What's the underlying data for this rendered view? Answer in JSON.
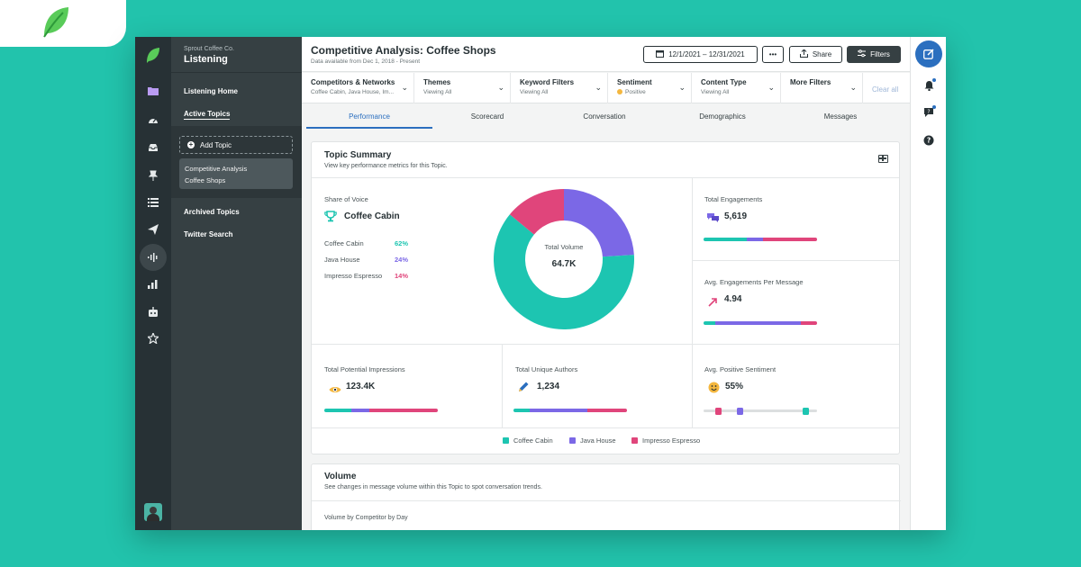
{
  "sidebar": {
    "org_name": "Sprout Coffee Co.",
    "section": "Listening",
    "nav": {
      "listening_home": "Listening Home",
      "active_topics": "Active Topics",
      "add_topic": "Add Topic",
      "topic_line1": "Competitive Analysis",
      "topic_line2": "Coffee Shops",
      "archived_topics": "Archived Topics",
      "twitter_search": "Twitter Search"
    }
  },
  "header": {
    "title": "Competitive Analysis: Coffee Shops",
    "subtitle": "Data available from Dec 1, 2018 - Present",
    "date_range": "12/1/2021 – 12/31/2021",
    "more_label": "•••",
    "share_label": "Share",
    "filters_label": "Filters"
  },
  "filters": [
    {
      "label": "Competitors & Networks",
      "value": "Coffee Cabin, Java House, Im..."
    },
    {
      "label": "Themes",
      "value": "Viewing All"
    },
    {
      "label": "Keyword Filters",
      "value": "Viewing All"
    },
    {
      "label": "Sentiment",
      "value": "Positive"
    },
    {
      "label": "Content Type",
      "value": "Viewing All"
    },
    {
      "label": "More Filters",
      "value": ""
    }
  ],
  "clear_all": "Clear all",
  "tabs": [
    "Performance",
    "Scorecard",
    "Conversation",
    "Demographics",
    "Messages"
  ],
  "topic_summary": {
    "title": "Topic Summary",
    "subtitle": "View key performance metrics for this Topic.",
    "share_of_voice": {
      "label": "Share of Voice",
      "leader": "Coffee Cabin",
      "rows": [
        {
          "name": "Coffee Cabin",
          "value": "62%"
        },
        {
          "name": "Java House",
          "value": "24%"
        },
        {
          "name": "Impresso Espresso",
          "value": "14%"
        }
      ]
    },
    "donut": {
      "center_label": "Total Volume",
      "center_value": "64.7K",
      "shares": [
        0.62,
        0.24,
        0.14
      ]
    },
    "total_engagements": {
      "label": "Total Engagements",
      "value": "5,619",
      "split": [
        0.38,
        0.14,
        0.48
      ]
    },
    "avg_engagements": {
      "label": "Avg. Engagements Per Message",
      "value": "4.94",
      "split": [
        0.1,
        0.76,
        0.14
      ]
    },
    "impressions": {
      "label": "Total Potential Impressions",
      "value": "123.4K",
      "split": [
        0.24,
        0.16,
        0.6
      ]
    },
    "unique_authors": {
      "label": "Total Unique Authors",
      "value": "1,234",
      "split": [
        0.14,
        0.51,
        0.35
      ]
    },
    "positive_sentiment": {
      "label": "Avg. Positive Sentiment",
      "value": "55%",
      "markers": [
        0.13,
        0.32,
        0.9
      ]
    },
    "legend": [
      "Coffee Cabin",
      "Java House",
      "Impresso Espresso"
    ]
  },
  "volume": {
    "title": "Volume",
    "subtitle": "See changes in message volume within this Topic to spot conversation trends.",
    "section_label": "Volume by Competitor by Day"
  },
  "colors": {
    "coffee_cabin": "#1dc5b1",
    "java_house": "#7b68e6",
    "impresso_espresso": "#e0457b",
    "accent": "#2b6fbf"
  },
  "icons": {
    "rail": [
      "folder-icon",
      "dashboard-icon",
      "inbox-icon",
      "pin-icon",
      "list-icon",
      "send-icon",
      "listening-icon",
      "reports-icon",
      "bot-icon",
      "star-icon"
    ],
    "right": [
      "compose-icon",
      "bell-icon",
      "help-chat-icon",
      "question-icon"
    ]
  }
}
